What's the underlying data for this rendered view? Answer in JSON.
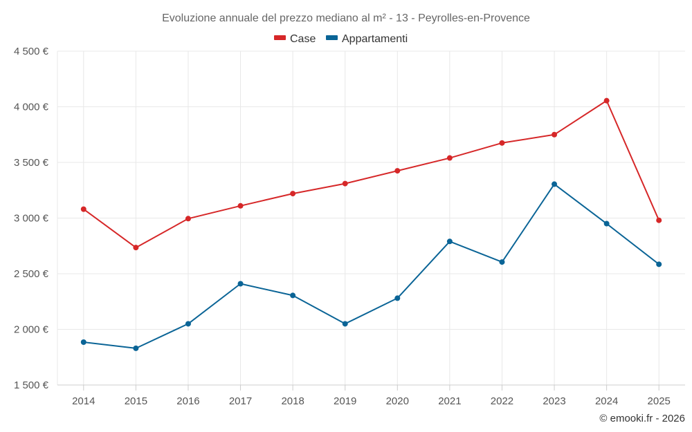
{
  "chart_data": {
    "type": "line",
    "title": "Evoluzione annuale del prezzo mediano al m² - 13 - Peyrolles-en-Provence",
    "x": [
      "2014",
      "2015",
      "2016",
      "2017",
      "2018",
      "2019",
      "2020",
      "2021",
      "2022",
      "2023",
      "2024",
      "2025"
    ],
    "series": [
      {
        "name": "Case",
        "color": "#d62728",
        "values": [
          3080,
          2735,
          2995,
          3110,
          3220,
          3310,
          3425,
          3540,
          3675,
          3750,
          4055,
          2980
        ]
      },
      {
        "name": "Appartamenti",
        "color": "#0a6496",
        "values": [
          1885,
          1830,
          2050,
          2410,
          2305,
          2050,
          2280,
          2790,
          2605,
          3305,
          2950,
          2585
        ]
      }
    ],
    "ylim": [
      1500,
      4500
    ],
    "yticks": [
      1500,
      2000,
      2500,
      3000,
      3500,
      4000,
      4500
    ],
    "ytick_labels": [
      "1 500 €",
      "2 000 €",
      "2 500 €",
      "3 000 €",
      "3 500 €",
      "4 000 €",
      "4 500 €"
    ],
    "xlabel": "",
    "ylabel": "",
    "legend_position": "top-center",
    "grid": true
  },
  "credit": "© emooki.fr - 2026"
}
